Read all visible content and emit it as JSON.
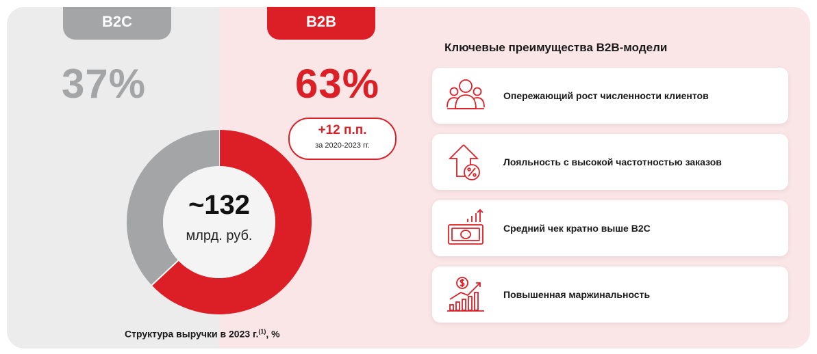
{
  "segments": {
    "b2c": {
      "label": "B2C",
      "percent": "37%"
    },
    "b2b": {
      "label": "B2B",
      "percent": "63%"
    }
  },
  "delta": {
    "value": "+12 п.п.",
    "period": "за 2020-2023 гг."
  },
  "center": {
    "value": "~132",
    "unit": "млрд. руб."
  },
  "caption": {
    "text": "Структура выручки в 2023 г.",
    "footnote": "(1)",
    "suffix": ", %"
  },
  "advantages": {
    "title": "Ключевые преимущества B2B-модели",
    "items": [
      {
        "text": "Опережающий рост численности клиентов",
        "icon": "people-group-icon"
      },
      {
        "text": "Лояльность с высокой частотностью заказов",
        "icon": "house-percent-icon"
      },
      {
        "text": "Средний чек кратно выше B2C",
        "icon": "banknote-growth-icon"
      },
      {
        "text": "Повышенная маржинальность",
        "icon": "dollar-bars-growth-icon"
      }
    ]
  },
  "colors": {
    "b2c": "#a4a5a7",
    "b2b": "#dc1f26",
    "b2b_bg": "#fbe6e7",
    "b2c_bg": "#ececec"
  },
  "chart_data": {
    "type": "pie",
    "donut": true,
    "categories": [
      "B2C",
      "B2B"
    ],
    "values": [
      37,
      63
    ],
    "title": "Структура выручки в 2023 г.",
    "center_label": "~132 млрд. руб."
  }
}
